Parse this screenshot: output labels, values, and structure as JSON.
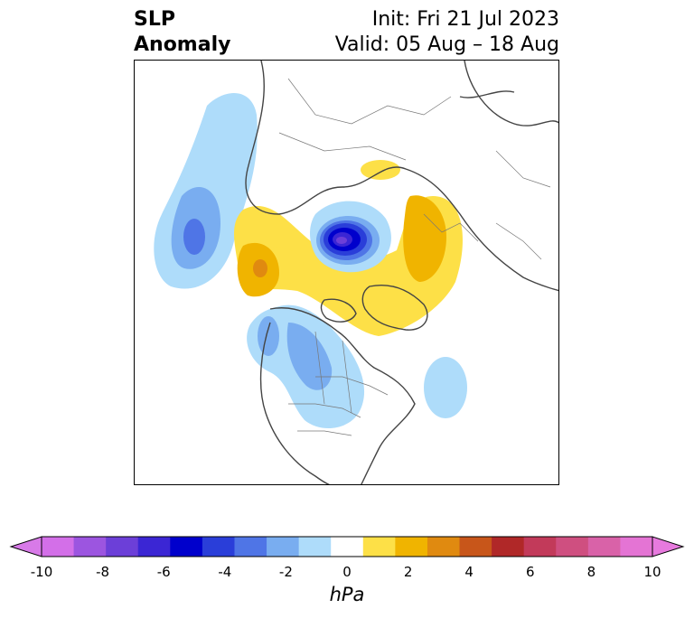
{
  "title": {
    "line1": "SLP",
    "line2": "Anomaly",
    "init": "Init: Fri 21 Jul 2023",
    "valid": "Valid: 05 Aug – 18 Aug"
  },
  "colorbar": {
    "unit": "hPa",
    "ticks": [
      "-10",
      "-8",
      "-6",
      "-4",
      "-2",
      "0",
      "2",
      "4",
      "6",
      "8",
      "10"
    ],
    "levels": [
      -10,
      -9,
      -8,
      -7,
      -6,
      -5,
      -4,
      -3,
      -2,
      -1,
      1,
      2,
      3,
      4,
      5,
      6,
      7,
      8,
      9,
      10
    ],
    "colors": [
      "#d36fe8",
      "#9c55e0",
      "#6c3fd8",
      "#3b26d4",
      "#0000cc",
      "#2a3ed9",
      "#4f75e6",
      "#79adf0",
      "#aedcfa",
      "#ffffff",
      "#fde047",
      "#f0b400",
      "#e08a10",
      "#c8561a",
      "#b02828",
      "#c23a5a",
      "#cf4f80",
      "#d962a8",
      "#e474d4"
    ],
    "extend_low_color": "#d87ae8",
    "extend_high_color": "#e77ade"
  },
  "map": {
    "projection": "polar stereographic (North Pole)",
    "field": "sea level pressure anomaly"
  }
}
